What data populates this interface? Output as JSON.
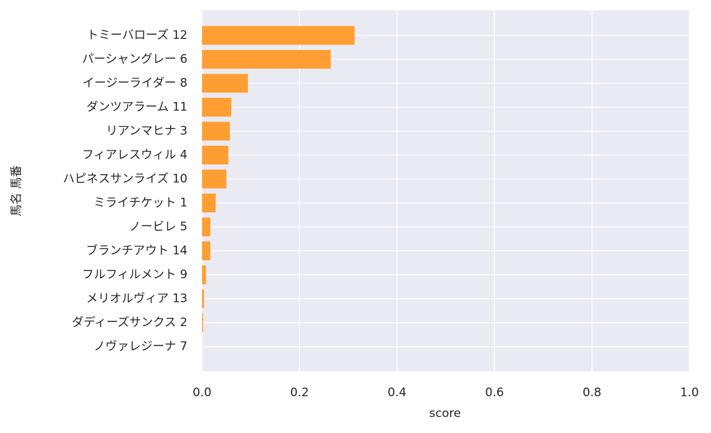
{
  "chart_data": {
    "type": "barh",
    "xlabel": "score",
    "ylabel": "馬名 馬番",
    "categories": [
      "トミーバローズ 12",
      "パーシャングレー 6",
      "イージーライダー 8",
      "ダンツアラーム 11",
      "リアンマヒナ 3",
      "フィアレスウィル 4",
      "ハピネスサンライズ 10",
      "ミライチケット 1",
      "ノービレ 5",
      "ブランチアウト 14",
      "フルフィルメント 9",
      "メリオルヴィア 13",
      "ダディーズサンクス 2",
      "ノヴァレジーナ 7"
    ],
    "values": [
      0.313,
      0.264,
      0.094,
      0.06,
      0.057,
      0.054,
      0.05,
      0.028,
      0.017,
      0.017,
      0.008,
      0.004,
      0.002,
      0
    ],
    "color": "#ff9f33",
    "xlim": [
      0,
      1
    ],
    "xticks": [
      {
        "value": 0,
        "label": "0.0"
      },
      0.2,
      0.4,
      0.6,
      0.8,
      {
        "value": 1,
        "label": "1.0"
      }
    ],
    "grid": true
  }
}
